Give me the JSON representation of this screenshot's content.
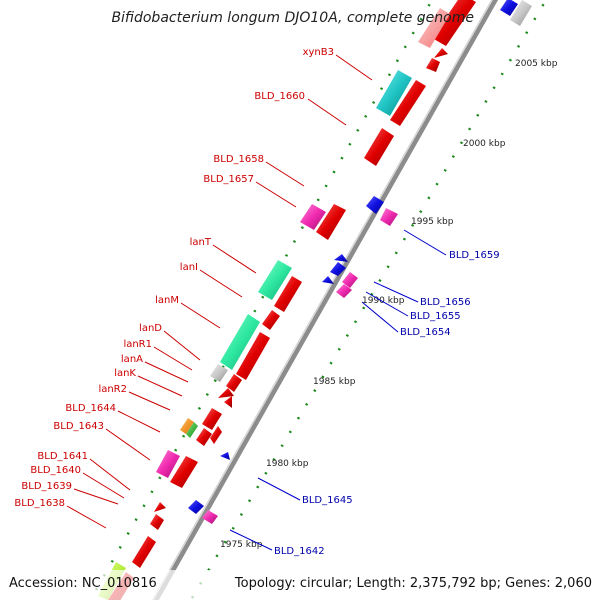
{
  "title": "Bifidobacterium longum DJO10A, complete genome",
  "footer": {
    "accession": "Accession: NC_010816",
    "summary": "Topology: circular; Length: 2,375,792 bp; Genes: 2,060"
  },
  "colors": {
    "label_left": "#cc0000",
    "label_right": "#0000aa",
    "backbone": "#999999",
    "tick": "#1a8a1a"
  },
  "ruler": [
    {
      "label": "2005 kbp"
    },
    {
      "label": "2000 kbp"
    },
    {
      "label": "1995 kbp"
    },
    {
      "label": "1990 kbp"
    },
    {
      "label": "1985 kbp"
    },
    {
      "label": "1980 kbp"
    },
    {
      "label": "1975 kbp"
    }
  ],
  "genes_left": [
    {
      "name": "xynB3"
    },
    {
      "name": "BLD_1660"
    },
    {
      "name": "BLD_1658"
    },
    {
      "name": "BLD_1657"
    },
    {
      "name": "lanT"
    },
    {
      "name": "lanI"
    },
    {
      "name": "lanM"
    },
    {
      "name": "lanD"
    },
    {
      "name": "lanR1"
    },
    {
      "name": "lanA"
    },
    {
      "name": "lanK"
    },
    {
      "name": "lanR2"
    },
    {
      "name": "BLD_1644"
    },
    {
      "name": "BLD_1643"
    },
    {
      "name": "BLD_1641"
    },
    {
      "name": "BLD_1640"
    },
    {
      "name": "BLD_1639"
    },
    {
      "name": "BLD_1638"
    }
  ],
  "genes_right": [
    {
      "name": "BLD_1659"
    },
    {
      "name": "BLD_1656"
    },
    {
      "name": "BLD_1655"
    },
    {
      "name": "BLD_1654"
    },
    {
      "name": "BLD_1645"
    },
    {
      "name": "BLD_1642"
    }
  ]
}
